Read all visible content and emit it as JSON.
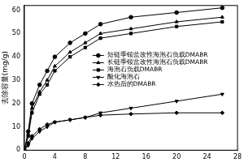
{
  "chart_data": {
    "type": "line",
    "y_label": "去除容量(mg/g)",
    "x": [
      0,
      0.5,
      1,
      2,
      3,
      4,
      6,
      8,
      10,
      14,
      20,
      26
    ],
    "series": [
      {
        "name": "短链季铵盐改性海泡石负载DMABR",
        "color": "#000000",
        "marker": "circle",
        "values": [
          0,
          8,
          20,
          28,
          34,
          40,
          46,
          50,
          54,
          57,
          59,
          61
        ]
      },
      {
        "name": "长链季铵盐改性海泡石负载DMABR",
        "color": "#000000",
        "marker": "triangle",
        "values": [
          0,
          7,
          18,
          25,
          30,
          36,
          42,
          46,
          50,
          52,
          55,
          57
        ]
      },
      {
        "name": "海泡石负载DMABR",
        "color": "#000000",
        "marker": "square",
        "values": [
          0,
          6,
          16,
          24,
          28,
          34,
          40,
          44,
          48,
          50,
          53,
          55
        ]
      },
      {
        "name": "酸化海泡石",
        "color": "#000000",
        "marker": "triangle_down",
        "values": [
          0,
          2,
          5,
          8,
          10,
          12,
          13,
          14,
          16,
          18,
          21,
          24
        ]
      },
      {
        "name": "水热后的DMABR",
        "color": "#000000",
        "marker": "diamond",
        "values": [
          0,
          3,
          6,
          9,
          11,
          12,
          13,
          14,
          15,
          15.5,
          16,
          16
        ]
      }
    ],
    "xlim": [
      0,
      28
    ],
    "xticks": [
      0,
      4,
      8,
      12,
      16,
      20,
      24,
      28
    ],
    "ylim": [
      0,
      62
    ],
    "yticks": [
      0,
      10,
      20,
      30,
      40,
      50,
      60
    ],
    "grid": false,
    "legend": "center"
  }
}
